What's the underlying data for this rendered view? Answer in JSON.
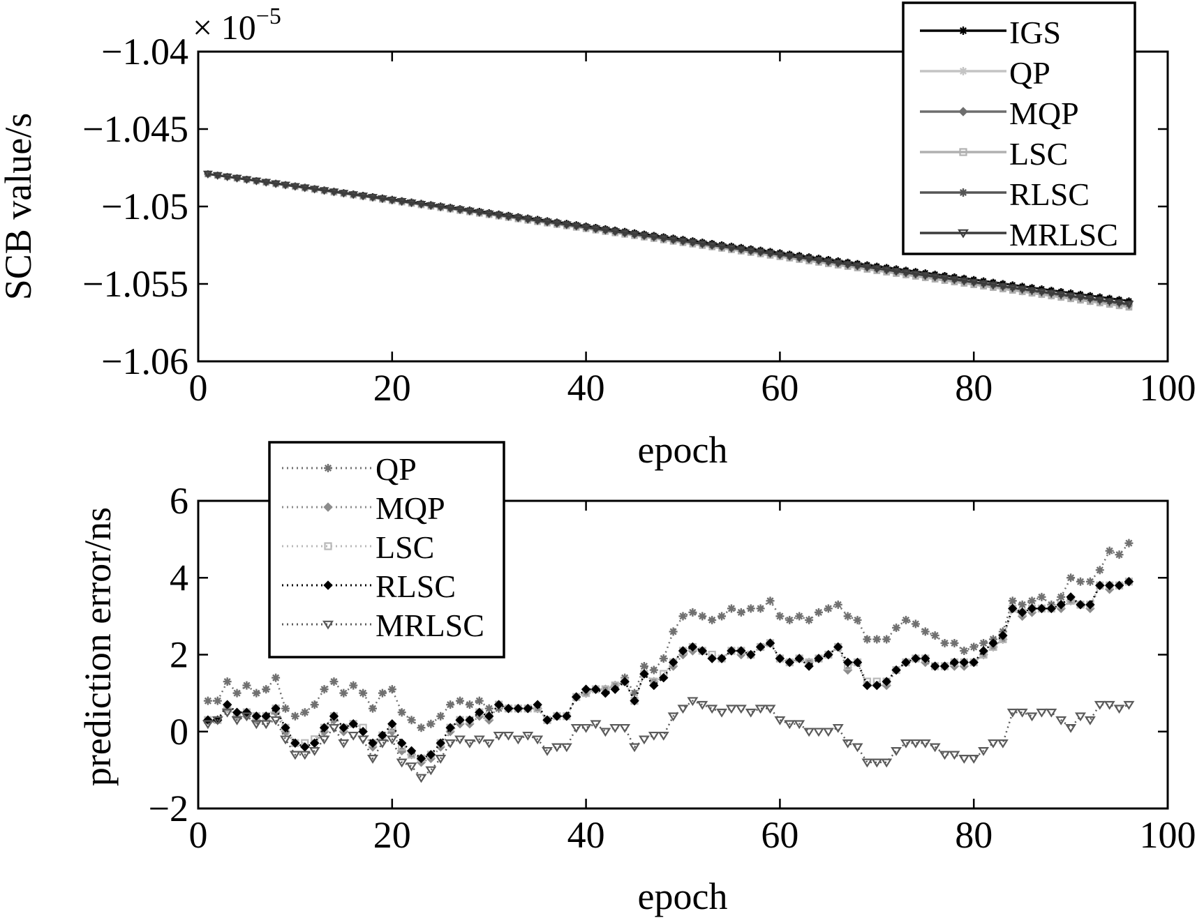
{
  "chart_data": [
    {
      "type": "line",
      "xlabel": "epoch",
      "ylabel": "SCB value/s",
      "exponent_label": "× 10",
      "exponent_power": "−5",
      "xlim": [
        0,
        100
      ],
      "ylim": [
        -1.06,
        -1.04
      ],
      "xticks": [
        0,
        20,
        40,
        60,
        80,
        100
      ],
      "xtick_labels": [
        "0",
        "20",
        "40",
        "60",
        "80",
        "100"
      ],
      "yticks": [
        -1.04,
        -1.045,
        -1.05,
        -1.055,
        -1.06
      ],
      "ytick_labels": [
        "−1.04",
        "−1.045",
        "−1.05",
        "−1.055",
        "−1.06"
      ],
      "legend_position": "top-right",
      "x_start": 1,
      "x_end": 96,
      "x_step": 1,
      "series": [
        {
          "name": "IGS",
          "color": "#000000",
          "marker": "star",
          "start": -1.0479,
          "end": -1.0561
        },
        {
          "name": "QP",
          "color": "#c4c4c4",
          "marker": "star",
          "start": -1.0479,
          "end": -1.0565
        },
        {
          "name": "MQP",
          "color": "#6e6e6e",
          "marker": "diamond",
          "start": -1.0479,
          "end": -1.0564
        },
        {
          "name": "LSC",
          "color": "#b0b0b0",
          "marker": "square",
          "start": -1.0479,
          "end": -1.0565
        },
        {
          "name": "RLSC",
          "color": "#555555",
          "marker": "star",
          "start": -1.0479,
          "end": -1.0563
        },
        {
          "name": "MRLSC",
          "color": "#3c3c3c",
          "marker": "triangle",
          "start": -1.0479,
          "end": -1.0563
        }
      ]
    },
    {
      "type": "line",
      "xlabel": "epoch",
      "ylabel": "prediction error/ns",
      "xlim": [
        0,
        100
      ],
      "ylim": [
        -2,
        6
      ],
      "xticks": [
        0,
        20,
        40,
        60,
        80,
        100
      ],
      "xtick_labels": [
        "0",
        "20",
        "40",
        "60",
        "80",
        "100"
      ],
      "yticks": [
        6,
        4,
        2,
        0,
        -2
      ],
      "ytick_labels": [
        "6",
        "4",
        "2",
        "0",
        "−2"
      ],
      "legend_position": "top-left",
      "x_start": 1,
      "x_step": 1,
      "series": [
        {
          "name": "QP",
          "color": "#707070",
          "marker": "star",
          "values": [
            0.8,
            0.8,
            1.3,
            1.0,
            1.2,
            1.0,
            1.1,
            1.4,
            0.6,
            0.4,
            0.5,
            0.7,
            1.1,
            1.3,
            1.0,
            1.2,
            1.0,
            0.6,
            1.0,
            1.1,
            0.5,
            0.3,
            0.1,
            0.2,
            0.4,
            0.7,
            0.8,
            0.7,
            0.8,
            0.6,
            0.6,
            0.6,
            0.6,
            0.6,
            0.6,
            0.3,
            0.4,
            0.4,
            0.9,
            1.0,
            1.1,
            1.1,
            1.2,
            1.4,
            1.0,
            1.7,
            1.6,
            1.9,
            2.6,
            3.0,
            3.1,
            3.0,
            2.9,
            3.0,
            3.2,
            3.1,
            3.2,
            3.2,
            3.4,
            3.0,
            2.9,
            3.0,
            2.9,
            3.1,
            3.2,
            3.3,
            3.0,
            2.9,
            2.4,
            2.4,
            2.4,
            2.7,
            2.9,
            2.8,
            2.6,
            2.5,
            2.3,
            2.3,
            2.1,
            2.2,
            2.3,
            2.4,
            2.6,
            3.4,
            3.3,
            3.4,
            3.5,
            3.3,
            3.5,
            4.0,
            3.9,
            3.9,
            4.2,
            4.7,
            4.6,
            4.9
          ]
        },
        {
          "name": "MQP",
          "color": "#8c8c8c",
          "marker": "diamond",
          "values": [
            0.3,
            0.3,
            0.6,
            0.4,
            0.4,
            0.3,
            0.4,
            0.5,
            0.0,
            -0.3,
            -0.4,
            -0.3,
            0.0,
            0.3,
            0.0,
            0.2,
            0.0,
            -0.4,
            -0.1,
            0.0,
            -0.5,
            -0.6,
            -0.8,
            -0.7,
            -0.4,
            0.0,
            0.2,
            0.2,
            0.4,
            0.3,
            0.7,
            0.6,
            0.6,
            0.6,
            0.6,
            0.3,
            0.4,
            0.4,
            0.9,
            1.0,
            1.1,
            1.1,
            1.2,
            1.3,
            0.8,
            1.5,
            1.3,
            1.4,
            1.7,
            2.0,
            2.1,
            2.1,
            1.9,
            1.9,
            2.1,
            2.0,
            2.0,
            2.2,
            2.3,
            1.9,
            1.8,
            1.9,
            1.8,
            1.9,
            2.0,
            2.2,
            1.6,
            1.8,
            1.2,
            1.2,
            1.2,
            1.6,
            1.8,
            1.9,
            1.8,
            1.7,
            1.7,
            1.7,
            1.7,
            1.8,
            2.0,
            2.2,
            2.4,
            3.2,
            3.0,
            3.1,
            3.2,
            3.2,
            3.2,
            3.4,
            3.3,
            3.2,
            3.8,
            3.7,
            3.8,
            3.9
          ]
        },
        {
          "name": "LSC",
          "color": "#b8b8b8",
          "marker": "square",
          "values": [
            0.3,
            0.3,
            0.6,
            0.4,
            0.5,
            0.4,
            0.4,
            0.6,
            0.1,
            -0.3,
            -0.3,
            -0.2,
            0.1,
            0.4,
            0.1,
            0.2,
            0.1,
            -0.3,
            -0.1,
            0.1,
            -0.4,
            -0.6,
            -0.7,
            -0.6,
            -0.3,
            0.1,
            0.3,
            0.3,
            0.5,
            0.4,
            0.7,
            0.6,
            0.6,
            0.6,
            0.6,
            0.3,
            0.4,
            0.4,
            0.9,
            1.0,
            1.1,
            1.1,
            1.2,
            1.3,
            0.8,
            1.5,
            1.3,
            1.5,
            1.8,
            2.1,
            2.2,
            2.1,
            2.0,
            1.9,
            2.1,
            2.1,
            2.0,
            2.2,
            2.3,
            1.9,
            1.8,
            1.9,
            1.8,
            1.9,
            2.0,
            2.2,
            1.7,
            1.8,
            1.3,
            1.3,
            1.3,
            1.6,
            1.8,
            1.9,
            1.9,
            1.7,
            1.7,
            1.8,
            1.8,
            1.8,
            2.0,
            2.2,
            2.4,
            3.2,
            3.1,
            3.2,
            3.2,
            3.2,
            3.3,
            3.4,
            3.3,
            3.3,
            3.8,
            3.8,
            3.8,
            3.9
          ]
        },
        {
          "name": "RLSC",
          "color": "#000000",
          "marker": "diamond",
          "values": [
            0.3,
            0.3,
            0.7,
            0.5,
            0.5,
            0.4,
            0.4,
            0.6,
            0.1,
            -0.3,
            -0.4,
            -0.3,
            0.1,
            0.4,
            0.1,
            0.2,
            0.0,
            -0.3,
            -0.1,
            0.2,
            -0.3,
            -0.5,
            -0.7,
            -0.6,
            -0.3,
            0.1,
            0.3,
            0.3,
            0.5,
            0.4,
            0.7,
            0.6,
            0.6,
            0.6,
            0.7,
            0.3,
            0.4,
            0.4,
            0.9,
            1.1,
            1.1,
            1.0,
            1.1,
            1.3,
            0.8,
            1.5,
            1.2,
            1.4,
            1.8,
            2.1,
            2.2,
            2.1,
            1.9,
            1.9,
            2.1,
            2.1,
            2.0,
            2.2,
            2.3,
            1.9,
            1.8,
            1.9,
            1.7,
            1.9,
            2.0,
            2.2,
            1.8,
            1.8,
            1.2,
            1.2,
            1.3,
            1.6,
            1.8,
            1.9,
            1.9,
            1.7,
            1.7,
            1.8,
            1.8,
            1.8,
            2.1,
            2.3,
            2.5,
            3.2,
            3.1,
            3.2,
            3.2,
            3.2,
            3.3,
            3.5,
            3.3,
            3.3,
            3.8,
            3.8,
            3.8,
            3.9
          ]
        },
        {
          "name": "MRLSC",
          "color": "#5a5a5a",
          "marker": "triangle",
          "values": [
            0.2,
            0.3,
            0.5,
            0.3,
            0.4,
            0.2,
            0.2,
            0.3,
            -0.2,
            -0.6,
            -0.6,
            -0.5,
            -0.2,
            0.1,
            -0.3,
            -0.1,
            -0.2,
            -0.7,
            -0.3,
            -0.2,
            -0.8,
            -0.9,
            -1.2,
            -1.0,
            -0.7,
            -0.3,
            -0.2,
            -0.3,
            -0.2,
            -0.3,
            -0.1,
            -0.1,
            -0.2,
            -0.1,
            -0.2,
            -0.5,
            -0.4,
            -0.4,
            0.1,
            0.1,
            0.2,
            0.0,
            0.1,
            0.1,
            -0.4,
            -0.2,
            -0.1,
            -0.1,
            0.4,
            0.6,
            0.8,
            0.7,
            0.6,
            0.5,
            0.6,
            0.6,
            0.5,
            0.6,
            0.6,
            0.3,
            0.2,
            0.2,
            0.0,
            0.0,
            0.0,
            0.1,
            -0.3,
            -0.4,
            -0.8,
            -0.8,
            -0.8,
            -0.5,
            -0.3,
            -0.3,
            -0.3,
            -0.4,
            -0.6,
            -0.6,
            -0.7,
            -0.7,
            -0.5,
            -0.3,
            -0.3,
            0.5,
            0.5,
            0.4,
            0.5,
            0.5,
            0.3,
            0.1,
            0.4,
            0.3,
            0.7,
            0.7,
            0.6,
            0.7
          ]
        }
      ]
    }
  ]
}
